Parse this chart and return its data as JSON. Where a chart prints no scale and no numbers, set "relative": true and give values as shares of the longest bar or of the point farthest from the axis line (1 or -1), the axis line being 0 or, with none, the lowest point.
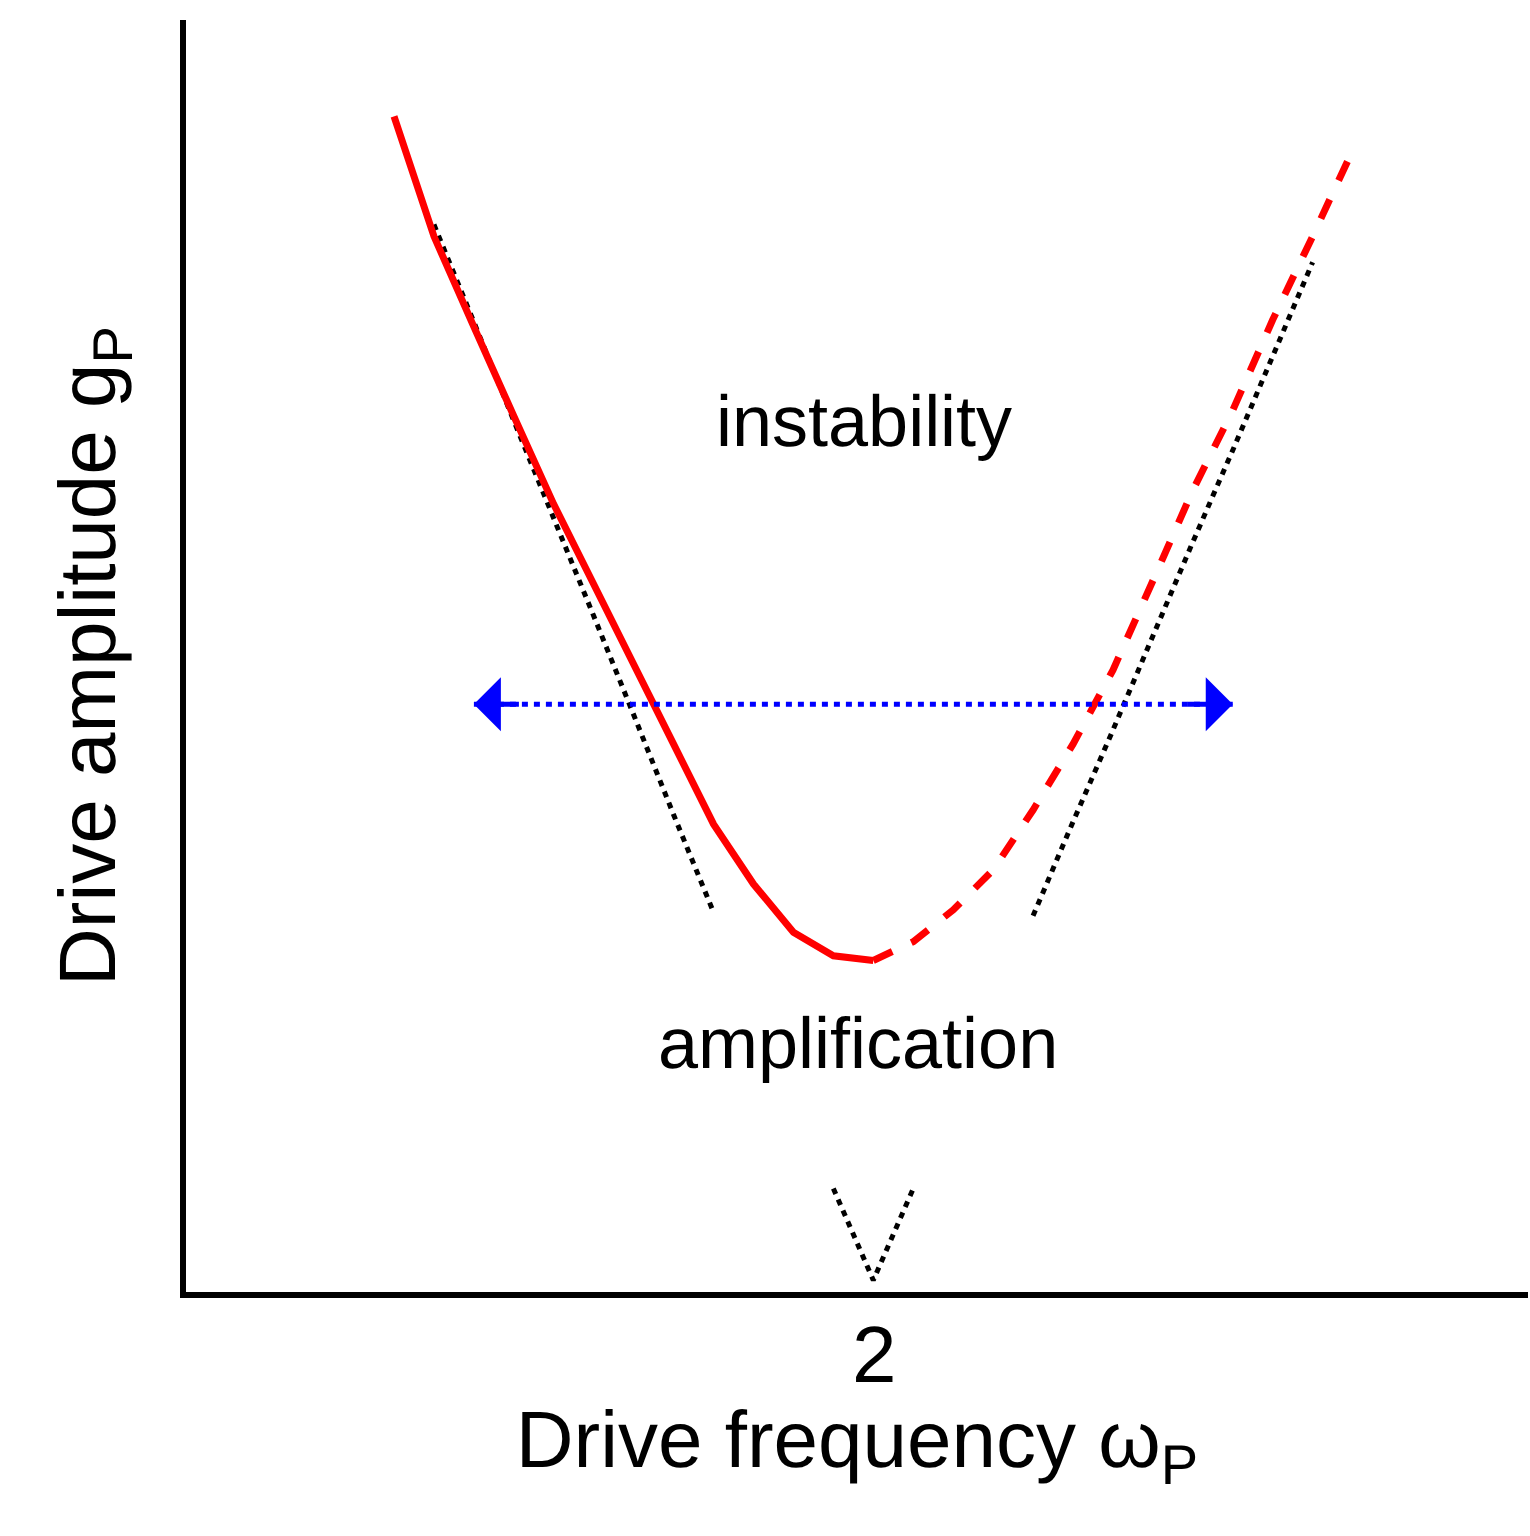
{
  "chart_data": {
    "type": "line",
    "relative": true,
    "xlabel": "Drive frequency ω$_{P}$",
    "ylabel": "Drive amplitude g$_{P}$",
    "tick_labels": false,
    "grid": false,
    "categories": [
      null,
      null,
      null,
      null,
      null,
      null,
      null,
      null,
      null,
      null,
      null,
      null,
      null,
      null,
      null,
      null,
      null,
      null,
      null,
      null,
      null,
      null,
      null,
      null,
      null
    ],
    "series": [
      {
        "color": "#000000",
        "line_style": "dotted",
        "values": [
          null,
          0.908,
          0.825,
          0.741,
          0.658,
          0.575,
          0.491,
          0.406,
          0.323,
          null,
          null,
          0.088,
          0.01,
          0.088,
          null,
          null,
          0.32,
          0.4,
          0.478,
          0.558,
          0.638,
          0.716,
          0.796,
          0.876,
          null
        ]
      },
      {
        "color": "#ff0000",
        "line_style": "solid",
        "values": [
          1,
          0.898,
          0.821,
          0.745,
          0.67,
          0.602,
          0.534,
          0.466,
          0.398,
          0.347,
          0.306,
          0.286,
          0.282,
          null,
          null,
          null,
          null,
          null,
          null,
          null,
          null,
          null,
          null,
          null,
          null
        ]
      },
      {
        "color": "#ff0000",
        "line_style": "dashed",
        "values": [
          null,
          null,
          null,
          null,
          null,
          null,
          null,
          null,
          null,
          null,
          null,
          null,
          0.282,
          0.298,
          0.325,
          0.359,
          0.41,
          0.466,
          0.529,
          0.605,
          0.682,
          0.75,
          0.827,
          0.898,
          0.971
        ]
      },
      {
        "color": "#0000ff",
        "line_style": "dotted",
        "values": [
          null,
          null,
          0.5,
          0.5,
          0.5,
          0.5,
          0.5,
          0.5,
          0.5,
          0.5,
          0.5,
          0.5,
          0.5,
          0.5,
          0.5,
          0.5,
          0.5,
          0.5,
          0.5,
          0.5,
          0.5,
          0.5,
          null,
          null,
          null
        ]
      }
    ],
    "annotations": [
      "2",
      "instability",
      "amplification"
    ]
  }
}
